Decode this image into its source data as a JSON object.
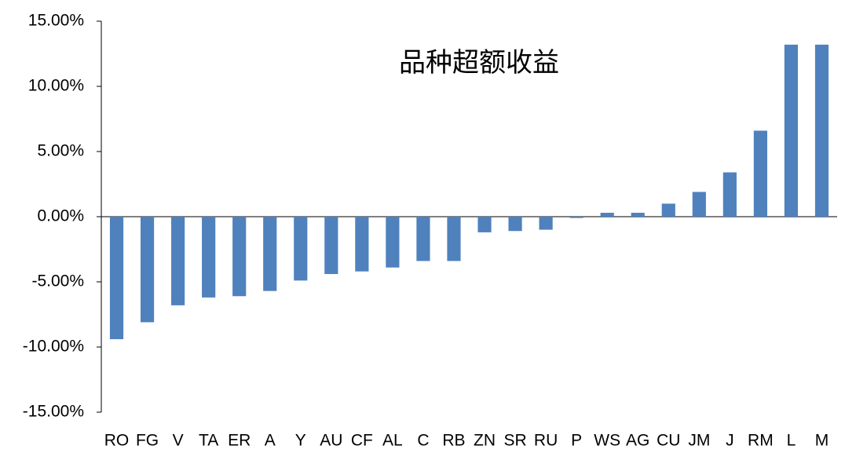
{
  "chart_data": {
    "type": "bar",
    "title": "品种超额收益",
    "categories": [
      "RO",
      "FG",
      "V",
      "TA",
      "ER",
      "A",
      "Y",
      "AU",
      "CF",
      "AL",
      "C",
      "RB",
      "ZN",
      "SR",
      "RU",
      "P",
      "WS",
      "AG",
      "CU",
      "JM",
      "J",
      "RM",
      "L",
      "M"
    ],
    "values": [
      -9.4,
      -8.1,
      -6.8,
      -6.2,
      -6.1,
      -5.7,
      -4.9,
      -4.4,
      -4.2,
      -3.9,
      -3.4,
      -3.4,
      -1.2,
      -1.1,
      -1.0,
      -0.1,
      0.3,
      0.3,
      1.0,
      1.9,
      3.4,
      6.6,
      13.2,
      13.2
    ],
    "color": "#4f81bd",
    "ylim": [
      -15,
      15
    ],
    "yticks": [
      {
        "value": -15,
        "label": "-15.00%"
      },
      {
        "value": -10,
        "label": "-10.00%"
      },
      {
        "value": -5,
        "label": "-5.00%"
      },
      {
        "value": 0,
        "label": "0.00%"
      },
      {
        "value": 5,
        "label": "5.00%"
      },
      {
        "value": 10,
        "label": "10.00%"
      },
      {
        "value": 15,
        "label": "15.00%"
      }
    ],
    "grid": false
  }
}
